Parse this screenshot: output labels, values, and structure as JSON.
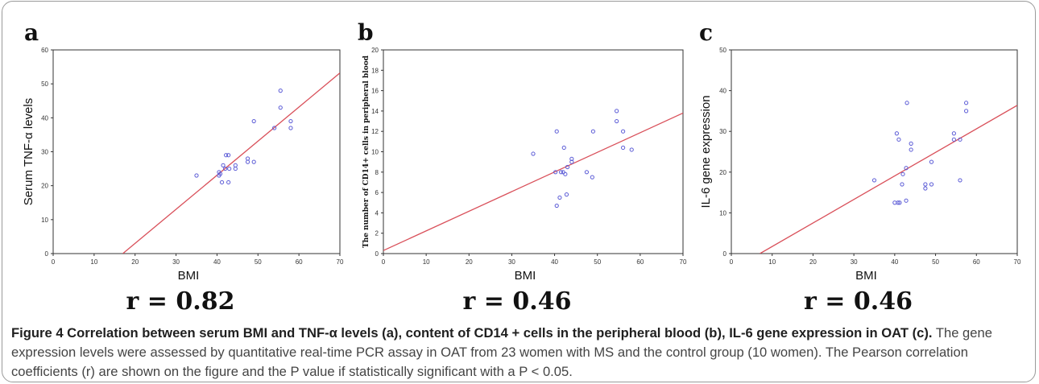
{
  "caption": {
    "title": "Figure 4 Correlation between serum BMI and TNF-α levels (a), content of CD14 + cells in the peripheral blood (b), IL-6 gene expression in OAT (c).",
    "body": "The gene expression levels were assessed by quantitative real-time PCR assay in OAT from 23 women with MS and the control group (10 women). The Pearson correlation coefficients (r) are shown on the figure and the P value if statistically significant with a P < 0.05."
  },
  "colors": {
    "points": "#5b5bd6",
    "fit_line": "#d9505a",
    "axes": "#333333"
  },
  "chart_data": [
    {
      "type": "scatter",
      "panel_label": "a",
      "xlabel": "BMI",
      "ylabel": "Serum TNF-α levels",
      "xlim": [
        0,
        70
      ],
      "ylim": [
        0,
        60
      ],
      "xticks": [
        0,
        10,
        20,
        30,
        40,
        50,
        60,
        70
      ],
      "yticks": [
        0,
        10,
        20,
        30,
        40,
        50,
        60
      ],
      "points": [
        [
          35,
          23
        ],
        [
          40.5,
          23
        ],
        [
          40.5,
          24
        ],
        [
          40.8,
          23.5
        ],
        [
          41.2,
          21
        ],
        [
          41.5,
          26
        ],
        [
          42,
          25
        ],
        [
          42.2,
          29
        ],
        [
          42.8,
          29
        ],
        [
          42.8,
          21
        ],
        [
          43,
          25
        ],
        [
          44.5,
          26
        ],
        [
          44.5,
          25
        ],
        [
          47.5,
          27
        ],
        [
          47.5,
          28
        ],
        [
          49,
          27
        ],
        [
          49,
          39
        ],
        [
          54,
          37
        ],
        [
          55.5,
          43
        ],
        [
          55.5,
          48
        ],
        [
          58,
          37
        ],
        [
          58,
          39
        ]
      ],
      "fit": [
        [
          17,
          0
        ],
        [
          70,
          53.2
        ]
      ],
      "r_label": "r = 0.82"
    },
    {
      "type": "scatter",
      "panel_label": "b",
      "xlabel": "BMI",
      "ylabel": "The number of CD14+ cells in peripheral blood",
      "xlim": [
        0,
        70
      ],
      "ylim": [
        0,
        20
      ],
      "xticks": [
        0,
        10,
        20,
        30,
        40,
        50,
        60,
        70
      ],
      "yticks": [
        0,
        2,
        4,
        6,
        8,
        10,
        12,
        14,
        16,
        18,
        20
      ],
      "points": [
        [
          35,
          9.8
        ],
        [
          40.2,
          8
        ],
        [
          40.5,
          12
        ],
        [
          40.5,
          4.7
        ],
        [
          41.2,
          5.5
        ],
        [
          41.5,
          8
        ],
        [
          42,
          8
        ],
        [
          42.2,
          10.4
        ],
        [
          42.5,
          7.8
        ],
        [
          42.8,
          5.8
        ],
        [
          43,
          8.5
        ],
        [
          44,
          9
        ],
        [
          44,
          9.3
        ],
        [
          47.5,
          8
        ],
        [
          48.8,
          7.5
        ],
        [
          49,
          12
        ],
        [
          54.5,
          14
        ],
        [
          54.5,
          13
        ],
        [
          56,
          12
        ],
        [
          56,
          10.4
        ],
        [
          58,
          10.2
        ]
      ],
      "fit": [
        [
          0,
          0.3
        ],
        [
          70,
          13.8
        ]
      ],
      "r_label": "r = 0.46"
    },
    {
      "type": "scatter",
      "panel_label": "c",
      "xlabel": "BMI",
      "ylabel": "IL-6 gene expression",
      "xlim": [
        0,
        70
      ],
      "ylim": [
        0,
        50
      ],
      "xticks": [
        0,
        10,
        20,
        30,
        40,
        50,
        60,
        70
      ],
      "yticks": [
        0,
        10,
        20,
        30,
        40,
        50
      ],
      "points": [
        [
          35,
          18
        ],
        [
          40,
          12.5
        ],
        [
          40.5,
          29.5
        ],
        [
          40.8,
          12.5
        ],
        [
          41,
          28
        ],
        [
          41.2,
          12.5
        ],
        [
          41.8,
          17
        ],
        [
          42,
          19.5
        ],
        [
          42.8,
          21
        ],
        [
          42.8,
          13
        ],
        [
          43,
          37
        ],
        [
          44,
          27
        ],
        [
          44,
          25.5
        ],
        [
          47.5,
          16
        ],
        [
          47.5,
          17
        ],
        [
          49,
          22.5
        ],
        [
          49,
          17
        ],
        [
          54.5,
          28
        ],
        [
          54.5,
          29.5
        ],
        [
          56,
          28
        ],
        [
          56,
          18
        ],
        [
          57.5,
          35
        ],
        [
          57.5,
          37
        ]
      ],
      "fit": [
        [
          7,
          0
        ],
        [
          70,
          36.4
        ]
      ],
      "r_label": "r = 0.46"
    }
  ]
}
